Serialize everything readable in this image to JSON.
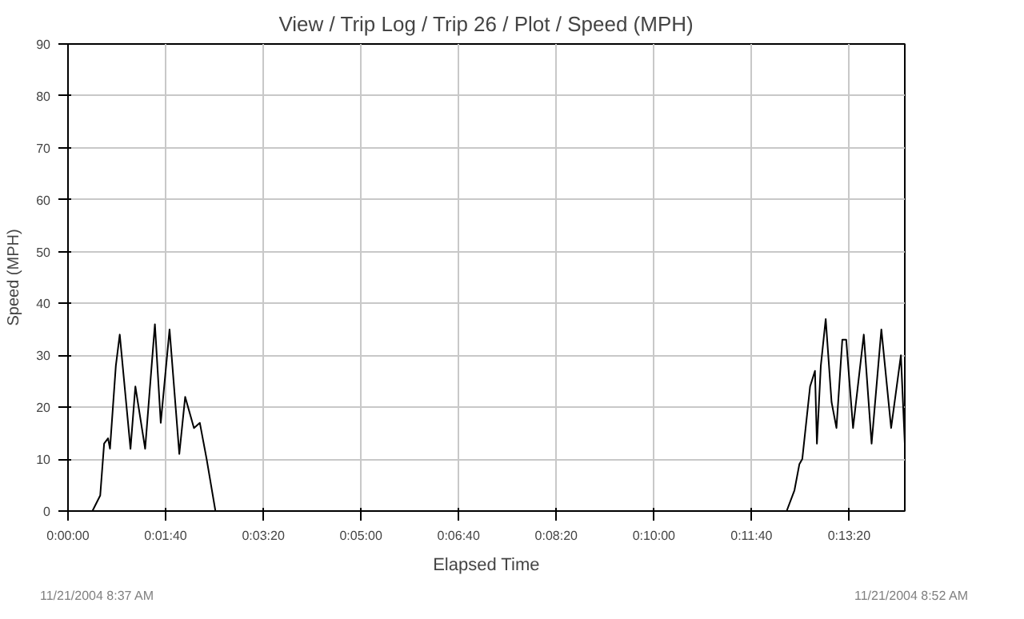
{
  "chart_data": {
    "type": "line",
    "title": "View / Trip Log / Trip 26 / Plot / Speed (MPH)",
    "xlabel": "Elapsed Time",
    "ylabel": "Speed (MPH)",
    "annotations": [
      "11/21/2004 8:37 AM",
      "11/21/2004 8:52 AM"
    ],
    "series": [
      {
        "color": "#000000",
        "x": [
          0,
          25,
          33,
          37,
          41,
          43,
          49,
          53,
          59,
          64,
          69,
          79,
          89,
          95,
          104,
          114,
          120,
          129,
          135,
          142,
          151,
          736,
          744,
          749,
          752,
          760,
          765,
          767,
          771,
          776,
          782,
          787,
          793,
          797,
          804,
          815,
          823,
          833,
          843,
          853,
          857
        ],
        "values": [
          0,
          0,
          3,
          13,
          14,
          12,
          28,
          34,
          22,
          12,
          24,
          12,
          36,
          17,
          35,
          11,
          22,
          16,
          17,
          10,
          0,
          0,
          4,
          9,
          10,
          24,
          27,
          13,
          28,
          37,
          21,
          16,
          33,
          33,
          16,
          34,
          13,
          35,
          16,
          30,
          13
        ]
      }
    ],
    "xlim": [
      0,
      857
    ],
    "ylim": [
      0,
      90
    ],
    "xticks": [
      {
        "value": 0,
        "label": "0:00:00"
      },
      {
        "value": 100,
        "label": "0:01:40"
      },
      {
        "value": 200,
        "label": "0:03:20"
      },
      {
        "value": 300,
        "label": "0:05:00"
      },
      {
        "value": 400,
        "label": "0:06:40"
      },
      {
        "value": 500,
        "label": "0:08:20"
      },
      {
        "value": 600,
        "label": "0:10:00"
      },
      {
        "value": 700,
        "label": "0:11:40"
      },
      {
        "value": 800,
        "label": "0:13:20"
      }
    ],
    "yticks": [
      0,
      10,
      20,
      30,
      40,
      50,
      60,
      70,
      80,
      90
    ],
    "grid": true,
    "marker": "none",
    "line_style": "solid"
  }
}
